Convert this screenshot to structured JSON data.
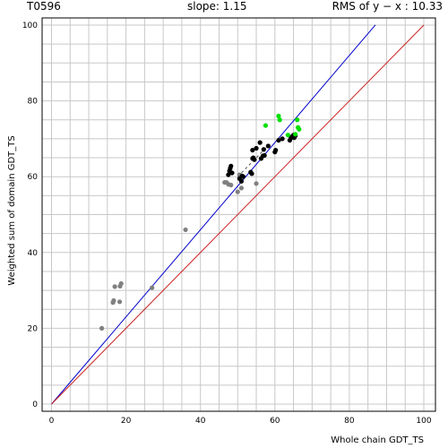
{
  "header": {
    "target": "T0596",
    "slope": "slope: 1.15",
    "rms": "RMS of  y − x : 10.33"
  },
  "chart_data": {
    "type": "scatter",
    "title": "",
    "xlabel": "Whole chain GDT_TS",
    "ylabel": "Weighted sum of domain GDT_TS",
    "xlim": [
      0,
      100
    ],
    "ylim": [
      0,
      100
    ],
    "x_ticks": [
      0,
      20,
      40,
      60,
      80,
      100
    ],
    "y_ticks": [
      0,
      20,
      40,
      60,
      80,
      100
    ],
    "grid": true,
    "colors": {
      "gray": "#808080",
      "black": "#000000",
      "green": "#00e000",
      "fit_line": "#0000cc",
      "identity_line": "#cc2222",
      "grid": "#c8c8c8",
      "dashed": "#555555"
    },
    "lines": [
      {
        "kind": "fit",
        "slope": 1.15,
        "intercept": 0,
        "x": [
          0,
          87
        ],
        "color": "#0000cc"
      },
      {
        "kind": "identity",
        "slope": 1,
        "intercept": 0,
        "x": [
          0,
          100
        ],
        "color": "#cc2222"
      },
      {
        "kind": "dashed",
        "x": [
          50,
          59
        ],
        "y": [
          60,
          69
        ],
        "color": "#555555"
      }
    ],
    "series": [
      {
        "color": "#808080",
        "points": [
          [
            13.5,
            20
          ],
          [
            16.5,
            26.8
          ],
          [
            16.7,
            27.3
          ],
          [
            17,
            31
          ],
          [
            18.4,
            31.1
          ],
          [
            18.7,
            31.8
          ],
          [
            18.3,
            27
          ],
          [
            27,
            30.7
          ],
          [
            36,
            46
          ],
          [
            46.5,
            58.5
          ],
          [
            47,
            58.5
          ],
          [
            47.5,
            58
          ],
          [
            48.2,
            57.8
          ],
          [
            50,
            56
          ],
          [
            51,
            57
          ],
          [
            55,
            58.2
          ],
          [
            50.5,
            60.5
          ]
        ]
      },
      {
        "color": "#000000",
        "points": [
          [
            47.5,
            60.5
          ],
          [
            47.8,
            61.5
          ],
          [
            48,
            62.2
          ],
          [
            48.2,
            62.8
          ],
          [
            48.5,
            61
          ],
          [
            50.5,
            59.5
          ],
          [
            51,
            58.8
          ],
          [
            51.5,
            60
          ],
          [
            51.2,
            60.2
          ],
          [
            53.5,
            61.2
          ],
          [
            53.8,
            60.8
          ],
          [
            54,
            64.8
          ],
          [
            54.2,
            65
          ],
          [
            54.5,
            64.5
          ],
          [
            54,
            67
          ],
          [
            55,
            67.5
          ],
          [
            56,
            69
          ],
          [
            56.3,
            64.8
          ],
          [
            56.8,
            65.5
          ],
          [
            57.2,
            65.6
          ],
          [
            57,
            67.2
          ],
          [
            58.2,
            68.1
          ],
          [
            60,
            66.5
          ],
          [
            60.2,
            67
          ],
          [
            61,
            69.6
          ],
          [
            62,
            70
          ],
          [
            64,
            69.6
          ],
          [
            64.3,
            70.2
          ],
          [
            64.5,
            70.5
          ],
          [
            65,
            71
          ],
          [
            65.2,
            70.3
          ],
          [
            65.5,
            70.8
          ]
        ]
      },
      {
        "color": "#00e000",
        "points": [
          [
            57.5,
            73.5
          ],
          [
            61,
            76
          ],
          [
            61.3,
            75
          ],
          [
            63.5,
            71
          ],
          [
            65.5,
            71.2
          ],
          [
            66,
            75
          ],
          [
            66.2,
            73
          ],
          [
            66.5,
            72.5
          ]
        ]
      }
    ]
  }
}
